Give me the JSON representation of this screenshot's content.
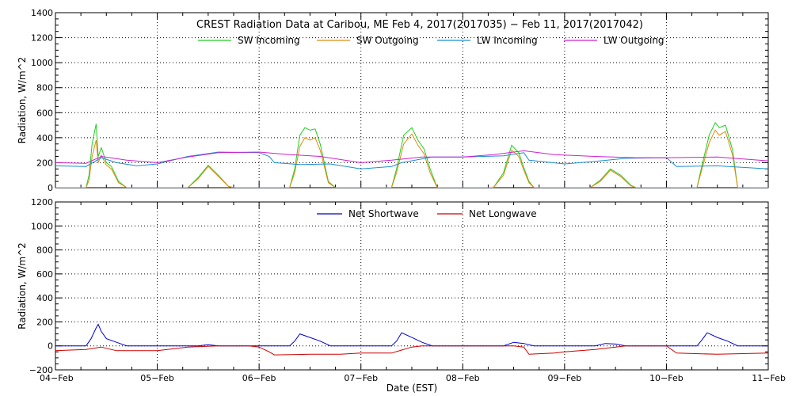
{
  "chart_data": [
    {
      "type": "line",
      "title": "CREST Radiation Data at Caribou, ME   Feb  4, 2017(2017035) − Feb 11, 2017(2017042)",
      "ylabel": "Radiation, W/m^2",
      "xlabel": "",
      "ylim": [
        0,
        1400
      ],
      "yticks": [
        "0",
        "200",
        "400",
        "600",
        "800",
        "1000",
        "1200",
        "1400"
      ],
      "grid": true,
      "legend_position": "top",
      "series": [
        {
          "name": "SW Incoming",
          "color": "#22cc22",
          "x": [
            0,
            0.3,
            0.33,
            0.36,
            0.4,
            0.42,
            0.45,
            0.5,
            0.55,
            0.62,
            0.7,
            1.0,
            1.3,
            1.4,
            1.5,
            1.6,
            1.7,
            1.75,
            2.0,
            2.3,
            2.35,
            2.4,
            2.45,
            2.5,
            2.55,
            2.6,
            2.68,
            2.75,
            3.0,
            3.3,
            3.35,
            3.42,
            3.5,
            3.56,
            3.62,
            3.68,
            3.75,
            4.0,
            4.3,
            4.4,
            4.48,
            4.55,
            4.6,
            4.65,
            4.7,
            5.0,
            5.25,
            5.35,
            5.45,
            5.55,
            5.65,
            5.7,
            6.0,
            6.3,
            6.35,
            6.42,
            6.48,
            6.52,
            6.58,
            6.65,
            6.7,
            7.0
          ],
          "values": [
            0,
            0,
            100,
            350,
            510,
            250,
            320,
            200,
            170,
            50,
            0,
            0,
            0,
            80,
            180,
            100,
            10,
            0,
            0,
            0,
            150,
            420,
            480,
            460,
            470,
            350,
            50,
            0,
            0,
            0,
            150,
            420,
            480,
            380,
            310,
            150,
            0,
            0,
            0,
            120,
            340,
            280,
            160,
            50,
            0,
            0,
            0,
            60,
            150,
            100,
            20,
            0,
            0,
            0,
            180,
            420,
            520,
            480,
            500,
            300,
            0,
            0
          ]
        },
        {
          "name": "SW Outgoing",
          "color": "#e08a10",
          "x": [
            0,
            0.3,
            0.33,
            0.36,
            0.4,
            0.42,
            0.45,
            0.5,
            0.55,
            0.62,
            0.7,
            1.0,
            1.3,
            1.4,
            1.5,
            1.6,
            1.7,
            1.75,
            2.0,
            2.3,
            2.35,
            2.4,
            2.45,
            2.5,
            2.55,
            2.6,
            2.68,
            2.75,
            3.0,
            3.3,
            3.35,
            3.42,
            3.5,
            3.56,
            3.62,
            3.68,
            3.75,
            4.0,
            4.3,
            4.4,
            4.48,
            4.55,
            4.6,
            4.65,
            4.7,
            5.0,
            5.25,
            5.35,
            5.45,
            5.55,
            5.65,
            5.7,
            6.0,
            6.3,
            6.35,
            6.42,
            6.48,
            6.52,
            6.58,
            6.65,
            6.7,
            7.0
          ],
          "values": [
            0,
            0,
            60,
            250,
            380,
            200,
            260,
            180,
            150,
            40,
            0,
            0,
            0,
            70,
            170,
            90,
            10,
            0,
            0,
            0,
            120,
            330,
            400,
            380,
            400,
            300,
            40,
            0,
            0,
            0,
            120,
            350,
            430,
            340,
            270,
            120,
            0,
            0,
            0,
            100,
            300,
            250,
            140,
            40,
            0,
            0,
            0,
            50,
            140,
            90,
            15,
            0,
            0,
            0,
            150,
            360,
            460,
            420,
            450,
            260,
            0,
            0
          ]
        },
        {
          "name": "LW Incoming",
          "color": "#1a8fd0",
          "x": [
            0,
            0.3,
            0.45,
            0.6,
            0.8,
            1.0,
            1.3,
            1.6,
            2.0,
            2.1,
            2.15,
            2.4,
            2.7,
            3.0,
            3.3,
            3.4,
            3.7,
            4.0,
            4.4,
            4.6,
            4.65,
            5.0,
            5.3,
            5.6,
            6.0,
            6.1,
            6.5,
            7.0
          ],
          "values": [
            175,
            170,
            240,
            200,
            175,
            190,
            250,
            285,
            280,
            250,
            200,
            185,
            190,
            150,
            170,
            200,
            245,
            245,
            255,
            280,
            220,
            190,
            210,
            235,
            240,
            170,
            175,
            150
          ]
        },
        {
          "name": "LW Outgoing",
          "color": "#d020d0",
          "x": [
            0,
            0.3,
            0.45,
            0.7,
            1.0,
            1.3,
            1.6,
            2.0,
            2.3,
            2.6,
            3.0,
            3.3,
            3.6,
            4.0,
            4.3,
            4.6,
            4.9,
            5.3,
            5.7,
            6.0,
            6.5,
            7.0
          ],
          "values": [
            200,
            195,
            250,
            220,
            200,
            245,
            280,
            285,
            265,
            250,
            200,
            220,
            245,
            245,
            265,
            295,
            265,
            250,
            240,
            240,
            245,
            215
          ]
        }
      ]
    },
    {
      "type": "line",
      "title": "",
      "ylabel": "Radiation, W/m^2",
      "xlabel": "Date (EST)",
      "ylim": [
        -200,
        1200
      ],
      "yticks": [
        "−200",
        "0",
        "200",
        "400",
        "600",
        "800",
        "1000",
        "1200"
      ],
      "x_ticks": [
        "04−Feb",
        "05−Feb",
        "06−Feb",
        "07−Feb",
        "08−Feb",
        "09−Feb",
        "10−Feb",
        "11−Feb"
      ],
      "grid": true,
      "legend_position": "top",
      "series": [
        {
          "name": "Net Shortwave",
          "color": "#0000cc",
          "x": [
            0,
            0.3,
            0.35,
            0.4,
            0.42,
            0.45,
            0.5,
            0.6,
            0.7,
            1.0,
            1.4,
            1.5,
            1.6,
            2.0,
            2.3,
            2.35,
            2.4,
            2.5,
            2.6,
            2.7,
            3.0,
            3.3,
            3.35,
            3.4,
            3.5,
            3.6,
            3.7,
            4.0,
            4.4,
            4.5,
            4.6,
            4.7,
            5.0,
            5.3,
            5.4,
            5.5,
            5.6,
            6.0,
            6.3,
            6.35,
            6.4,
            6.5,
            6.6,
            6.7,
            7.0
          ],
          "values": [
            0,
            0,
            60,
            150,
            180,
            120,
            60,
            30,
            0,
            0,
            0,
            10,
            0,
            0,
            0,
            40,
            100,
            70,
            40,
            0,
            0,
            0,
            40,
            110,
            70,
            30,
            0,
            0,
            0,
            30,
            20,
            0,
            0,
            0,
            20,
            15,
            0,
            0,
            0,
            50,
            110,
            70,
            40,
            0,
            0
          ]
        },
        {
          "name": "Net Longwave",
          "color": "#cc0000",
          "x": [
            0,
            0.3,
            0.45,
            0.6,
            1.0,
            1.3,
            1.6,
            1.9,
            2.0,
            2.1,
            2.15,
            2.5,
            2.8,
            3.0,
            3.3,
            3.5,
            3.6,
            4.0,
            4.5,
            4.6,
            4.65,
            4.9,
            5.0,
            5.3,
            5.6,
            6.0,
            6.1,
            6.5,
            7.0
          ],
          "values": [
            -40,
            -30,
            -10,
            -40,
            -40,
            -10,
            0,
            0,
            -10,
            -50,
            -75,
            -70,
            -70,
            -60,
            -60,
            -10,
            0,
            0,
            0,
            -10,
            -70,
            -60,
            -50,
            -30,
            0,
            0,
            -60,
            -70,
            -60
          ]
        }
      ]
    }
  ]
}
